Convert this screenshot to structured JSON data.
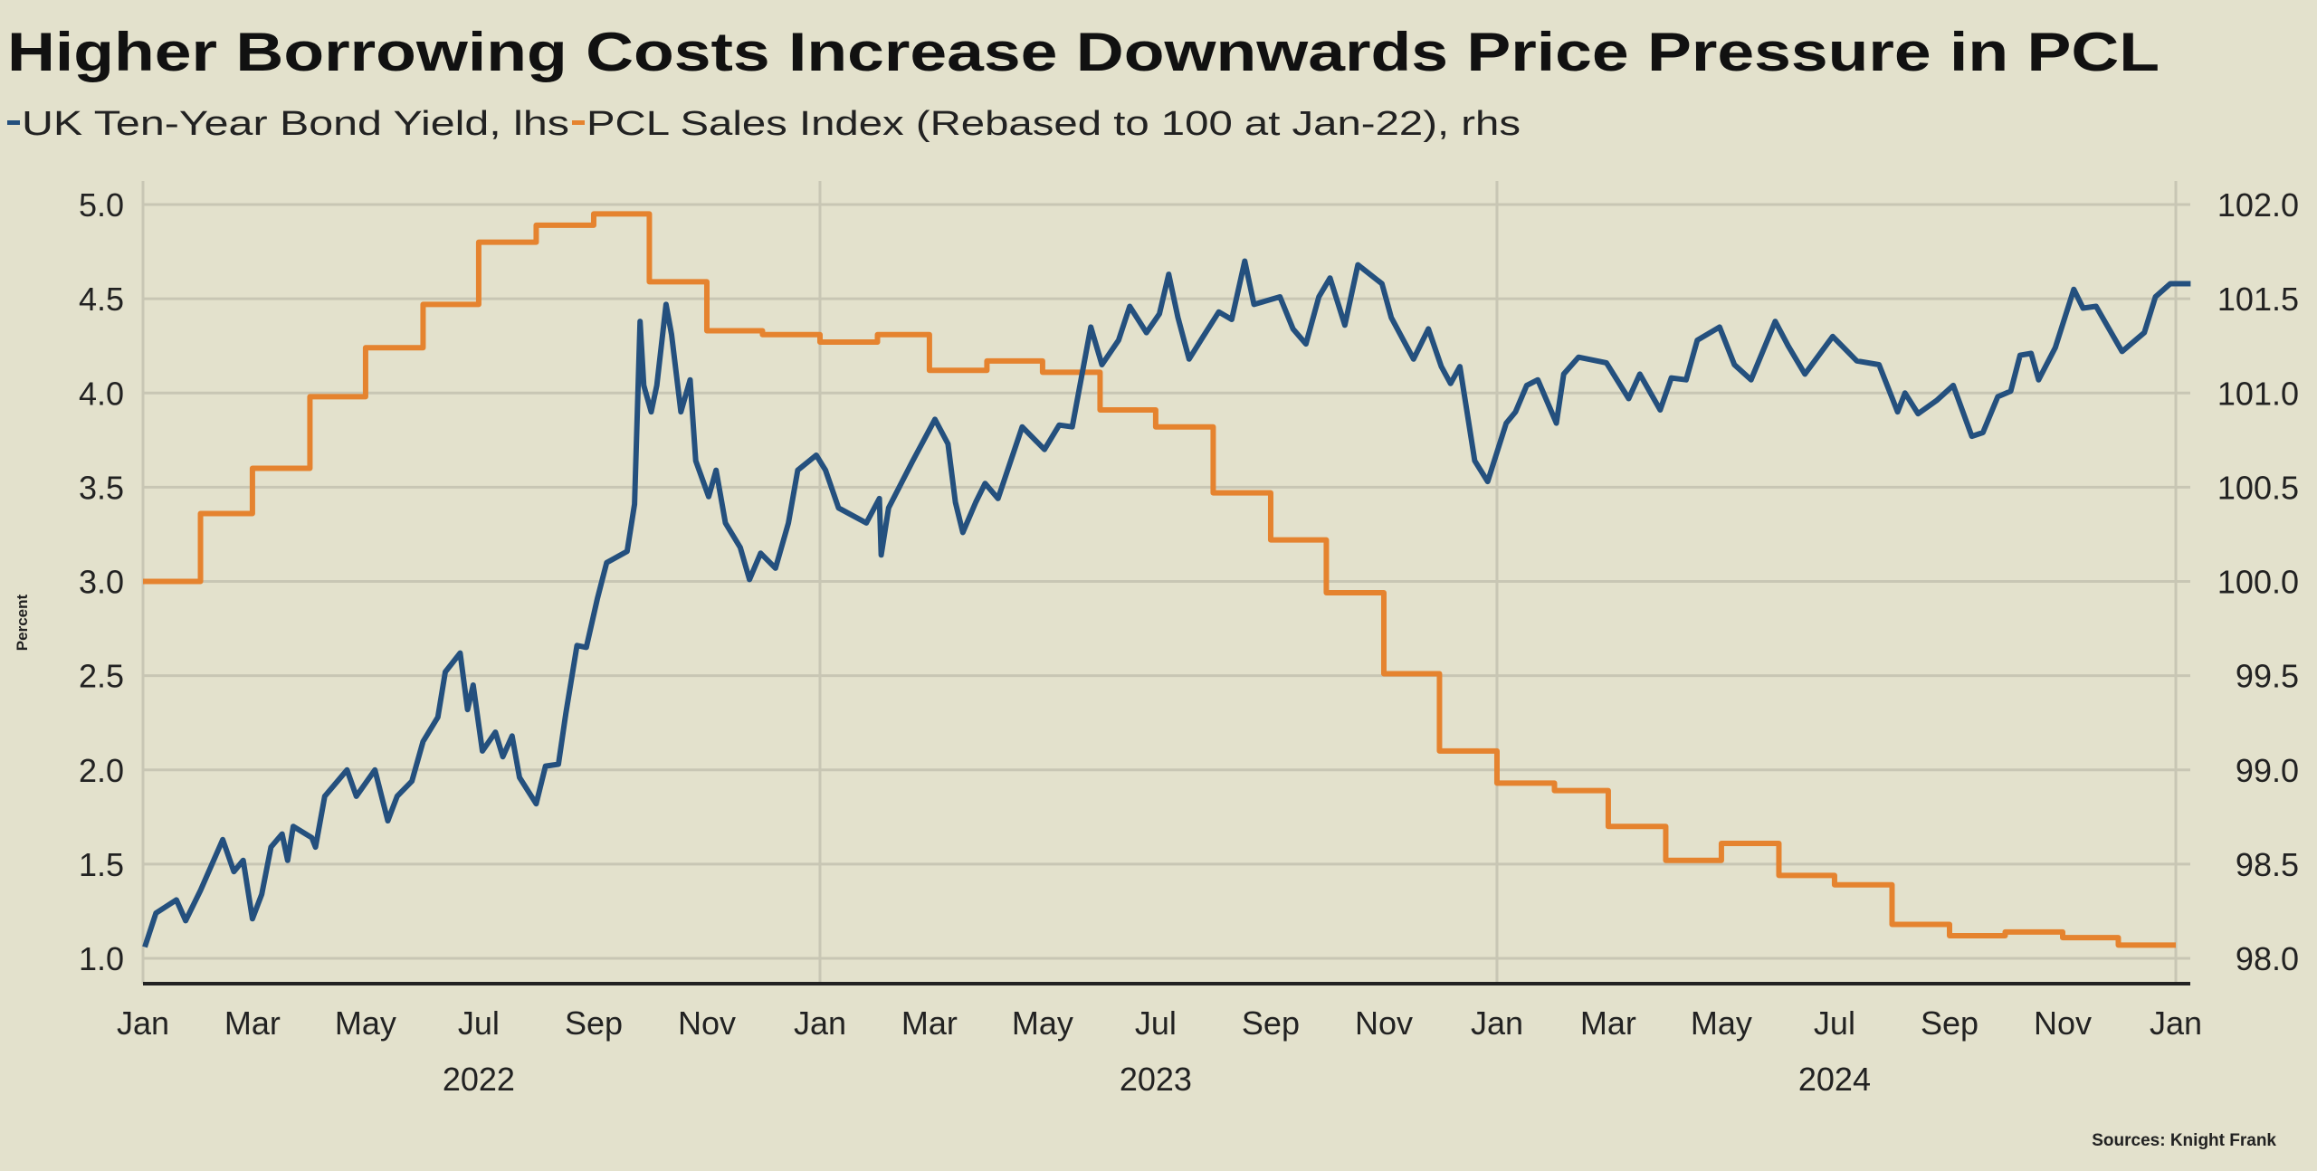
{
  "chart_data": {
    "type": "line",
    "title": "Higher Borrowing Costs Increase Downwards Price Pressure in PCL",
    "ylabel": "Percent",
    "source": "Sources: Knight Frank",
    "legend_placement": "top-left",
    "grid": true,
    "colors": {
      "background": "#e3e1cc",
      "yield": "#24507e",
      "index": "#e5832f"
    },
    "x_range": [
      "2022-01-01",
      "2025-01-10"
    ],
    "x_tick_labels": [
      "Jan",
      "Mar",
      "May",
      "Jul",
      "Sep",
      "Nov",
      "Jan",
      "Mar",
      "May",
      "Jul",
      "Sep",
      "Nov",
      "Jan",
      "Mar",
      "May",
      "Jul",
      "Sep",
      "Nov",
      "Jan"
    ],
    "x_year_labels": [
      "2022",
      "2023",
      "2024"
    ],
    "y_left": {
      "range": [
        1.0,
        5.0
      ],
      "ticks": [
        "1.0",
        "1.5",
        "2.0",
        "2.5",
        "3.0",
        "3.5",
        "4.0",
        "4.5",
        "5.0"
      ]
    },
    "y_right": {
      "range": [
        98.0,
        102.0
      ],
      "ticks": [
        "98.0",
        "98.5",
        "99.0",
        "99.5",
        "100.0",
        "100.5",
        "101.0",
        "101.5",
        "102.0"
      ]
    },
    "series": [
      {
        "name": "UK Ten-Year Bond Yield, lhs",
        "axis": "left",
        "style": "line",
        "points": [
          [
            "2022-01-02",
            1.06
          ],
          [
            "2022-01-08",
            1.24
          ],
          [
            "2022-01-19",
            1.31
          ],
          [
            "2022-01-24",
            1.2
          ],
          [
            "2022-02-01",
            1.36
          ],
          [
            "2022-02-13",
            1.63
          ],
          [
            "2022-02-19",
            1.46
          ],
          [
            "2022-02-24",
            1.52
          ],
          [
            "2022-03-01",
            1.21
          ],
          [
            "2022-03-06",
            1.34
          ],
          [
            "2022-03-11",
            1.59
          ],
          [
            "2022-03-17",
            1.66
          ],
          [
            "2022-03-20",
            1.52
          ],
          [
            "2022-03-23",
            1.7
          ],
          [
            "2022-04-02",
            1.64
          ],
          [
            "2022-04-04",
            1.59
          ],
          [
            "2022-04-09",
            1.86
          ],
          [
            "2022-04-21",
            2.0
          ],
          [
            "2022-04-26",
            1.86
          ],
          [
            "2022-05-06",
            2.0
          ],
          [
            "2022-05-13",
            1.73
          ],
          [
            "2022-05-18",
            1.86
          ],
          [
            "2022-05-26",
            1.94
          ],
          [
            "2022-06-01",
            2.15
          ],
          [
            "2022-06-09",
            2.28
          ],
          [
            "2022-06-13",
            2.52
          ],
          [
            "2022-06-21",
            2.62
          ],
          [
            "2022-06-25",
            2.32
          ],
          [
            "2022-06-28",
            2.45
          ],
          [
            "2022-07-03",
            2.1
          ],
          [
            "2022-07-10",
            2.2
          ],
          [
            "2022-07-14",
            2.07
          ],
          [
            "2022-07-19",
            2.18
          ],
          [
            "2022-07-23",
            1.96
          ],
          [
            "2022-08-01",
            1.82
          ],
          [
            "2022-08-06",
            2.02
          ],
          [
            "2022-08-13",
            2.03
          ],
          [
            "2022-08-17",
            2.3
          ],
          [
            "2022-08-23",
            2.66
          ],
          [
            "2022-08-28",
            2.65
          ],
          [
            "2022-09-03",
            2.91
          ],
          [
            "2022-09-08",
            3.1
          ],
          [
            "2022-09-19",
            3.16
          ],
          [
            "2022-09-23",
            3.41
          ],
          [
            "2022-09-26",
            4.38
          ],
          [
            "2022-09-28",
            4.04
          ],
          [
            "2022-10-02",
            3.9
          ],
          [
            "2022-10-05",
            4.04
          ],
          [
            "2022-10-10",
            4.47
          ],
          [
            "2022-10-13",
            4.31
          ],
          [
            "2022-10-18",
            3.9
          ],
          [
            "2022-10-23",
            4.07
          ],
          [
            "2022-10-26",
            3.64
          ],
          [
            "2022-11-02",
            3.45
          ],
          [
            "2022-11-06",
            3.59
          ],
          [
            "2022-11-11",
            3.31
          ],
          [
            "2022-11-19",
            3.18
          ],
          [
            "2022-11-24",
            3.01
          ],
          [
            "2022-11-30",
            3.15
          ],
          [
            "2022-12-08",
            3.07
          ],
          [
            "2022-12-15",
            3.31
          ],
          [
            "2022-12-20",
            3.59
          ],
          [
            "2022-12-30",
            3.67
          ],
          [
            "2023-01-04",
            3.59
          ],
          [
            "2023-01-11",
            3.39
          ],
          [
            "2023-01-26",
            3.31
          ],
          [
            "2023-02-02",
            3.44
          ],
          [
            "2023-02-03",
            3.14
          ],
          [
            "2023-02-07",
            3.39
          ],
          [
            "2023-02-20",
            3.64
          ],
          [
            "2023-03-04",
            3.86
          ],
          [
            "2023-03-11",
            3.73
          ],
          [
            "2023-03-15",
            3.42
          ],
          [
            "2023-03-19",
            3.26
          ],
          [
            "2023-03-26",
            3.42
          ],
          [
            "2023-03-31",
            3.52
          ],
          [
            "2023-04-07",
            3.44
          ],
          [
            "2023-04-20",
            3.82
          ],
          [
            "2023-05-02",
            3.7
          ],
          [
            "2023-05-10",
            3.83
          ],
          [
            "2023-05-17",
            3.82
          ],
          [
            "2023-05-27",
            4.35
          ],
          [
            "2023-06-02",
            4.15
          ],
          [
            "2023-06-11",
            4.28
          ],
          [
            "2023-06-17",
            4.46
          ],
          [
            "2023-06-26",
            4.32
          ],
          [
            "2023-07-03",
            4.42
          ],
          [
            "2023-07-08",
            4.63
          ],
          [
            "2023-07-13",
            4.4
          ],
          [
            "2023-07-19",
            4.18
          ],
          [
            "2023-07-26",
            4.29
          ],
          [
            "2023-08-04",
            4.43
          ],
          [
            "2023-08-11",
            4.39
          ],
          [
            "2023-08-18",
            4.7
          ],
          [
            "2023-08-23",
            4.47
          ],
          [
            "2023-09-06",
            4.51
          ],
          [
            "2023-09-13",
            4.34
          ],
          [
            "2023-09-20",
            4.26
          ],
          [
            "2023-09-27",
            4.51
          ],
          [
            "2023-10-03",
            4.61
          ],
          [
            "2023-10-11",
            4.36
          ],
          [
            "2023-10-18",
            4.68
          ],
          [
            "2023-10-31",
            4.58
          ],
          [
            "2023-11-05",
            4.4
          ],
          [
            "2023-11-17",
            4.18
          ],
          [
            "2023-11-25",
            4.34
          ],
          [
            "2023-12-02",
            4.14
          ],
          [
            "2023-12-07",
            4.05
          ],
          [
            "2023-12-12",
            4.14
          ],
          [
            "2023-12-20",
            3.64
          ],
          [
            "2023-12-27",
            3.53
          ],
          [
            "2024-01-06",
            3.84
          ],
          [
            "2024-01-11",
            3.9
          ],
          [
            "2024-01-17",
            4.04
          ],
          [
            "2024-01-23",
            4.07
          ],
          [
            "2024-02-02",
            3.84
          ],
          [
            "2024-02-06",
            4.1
          ],
          [
            "2024-02-14",
            4.19
          ],
          [
            "2024-02-29",
            4.16
          ],
          [
            "2024-03-12",
            3.97
          ],
          [
            "2024-03-18",
            4.1
          ],
          [
            "2024-03-29",
            3.91
          ],
          [
            "2024-04-04",
            4.08
          ],
          [
            "2024-04-12",
            4.07
          ],
          [
            "2024-04-18",
            4.28
          ],
          [
            "2024-04-30",
            4.35
          ],
          [
            "2024-05-08",
            4.15
          ],
          [
            "2024-05-17",
            4.07
          ],
          [
            "2024-05-30",
            4.38
          ],
          [
            "2024-06-06",
            4.25
          ],
          [
            "2024-06-15",
            4.1
          ],
          [
            "2024-06-30",
            4.3
          ],
          [
            "2024-07-13",
            4.17
          ],
          [
            "2024-07-25",
            4.15
          ],
          [
            "2024-08-04",
            3.9
          ],
          [
            "2024-08-08",
            4.0
          ],
          [
            "2024-08-15",
            3.89
          ],
          [
            "2024-08-25",
            3.96
          ],
          [
            "2024-09-03",
            4.04
          ],
          [
            "2024-09-13",
            3.77
          ],
          [
            "2024-09-19",
            3.79
          ],
          [
            "2024-09-27",
            3.98
          ],
          [
            "2024-10-04",
            4.01
          ],
          [
            "2024-10-09",
            4.2
          ],
          [
            "2024-10-15",
            4.21
          ],
          [
            "2024-10-19",
            4.07
          ],
          [
            "2024-10-28",
            4.24
          ],
          [
            "2024-11-07",
            4.55
          ],
          [
            "2024-11-12",
            4.45
          ],
          [
            "2024-11-19",
            4.46
          ],
          [
            "2024-12-03",
            4.22
          ],
          [
            "2024-12-15",
            4.32
          ],
          [
            "2024-12-21",
            4.51
          ],
          [
            "2024-12-29",
            4.58
          ],
          [
            "2025-01-09",
            4.58
          ]
        ]
      },
      {
        "name": "PCL Sales Index (Rebased to 100 at Jan-22), rhs",
        "axis": "right",
        "style": "step",
        "points": [
          [
            "2022-01-01",
            100.0
          ],
          [
            "2022-02-01",
            100.36
          ],
          [
            "2022-03-01",
            100.6
          ],
          [
            "2022-04-01",
            100.98
          ],
          [
            "2022-05-01",
            101.24
          ],
          [
            "2022-06-01",
            101.47
          ],
          [
            "2022-07-01",
            101.8
          ],
          [
            "2022-08-01",
            101.89
          ],
          [
            "2022-09-01",
            101.95
          ],
          [
            "2022-10-01",
            101.59
          ],
          [
            "2022-11-01",
            101.33
          ],
          [
            "2022-12-01",
            101.31
          ],
          [
            "2023-01-01",
            101.27
          ],
          [
            "2023-02-01",
            101.31
          ],
          [
            "2023-03-01",
            101.12
          ],
          [
            "2023-04-01",
            101.17
          ],
          [
            "2023-05-01",
            101.11
          ],
          [
            "2023-06-01",
            100.91
          ],
          [
            "2023-07-01",
            100.82
          ],
          [
            "2023-08-01",
            100.47
          ],
          [
            "2023-09-01",
            100.22
          ],
          [
            "2023-10-01",
            99.94
          ],
          [
            "2023-11-01",
            99.51
          ],
          [
            "2023-12-01",
            99.1
          ],
          [
            "2024-01-01",
            98.93
          ],
          [
            "2024-02-01",
            98.89
          ],
          [
            "2024-03-01",
            98.7
          ],
          [
            "2024-04-01",
            98.52
          ],
          [
            "2024-05-01",
            98.61
          ],
          [
            "2024-06-01",
            98.44
          ],
          [
            "2024-07-01",
            98.39
          ],
          [
            "2024-08-01",
            98.18
          ],
          [
            "2024-09-01",
            98.12
          ],
          [
            "2024-10-01",
            98.14
          ],
          [
            "2024-11-01",
            98.11
          ],
          [
            "2024-12-01",
            98.07
          ]
        ]
      }
    ]
  }
}
